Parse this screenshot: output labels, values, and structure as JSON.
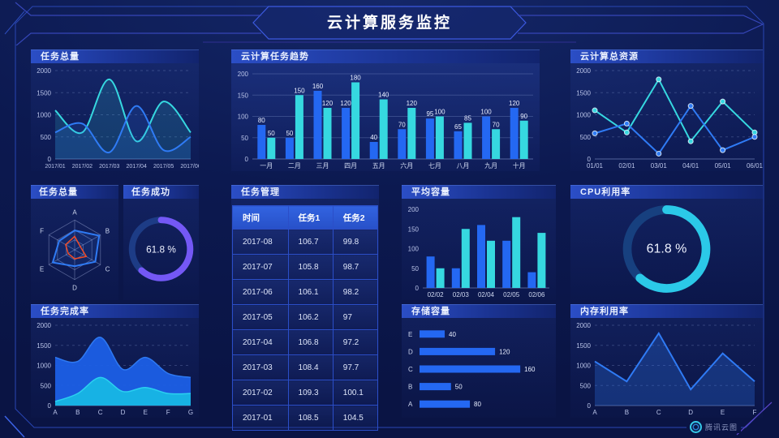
{
  "header": {
    "title": "云计算服务监控"
  },
  "watermark": {
    "label": "腾讯云图"
  },
  "colors": {
    "background": "#0c1950",
    "accent_blue": "#2468f2",
    "accent_cyan": "#36d8e0",
    "accent_purple": "#7458f5",
    "frame_line": "#2946b4",
    "title_bar": "#2b4ec6",
    "table_border": "#2b4ec8"
  },
  "chart_data": [
    {
      "id": "tasks_total_line",
      "type": "line",
      "title": "任务总量",
      "smooth": true,
      "markers": false,
      "grid": "dashed",
      "area_opacity": 0.16,
      "xfont": 7,
      "x": [
        "2017/01",
        "2017/02",
        "2017/03",
        "2017/04",
        "2017/05",
        "2017/06"
      ],
      "series": [
        {
          "name": "cyan-series",
          "color": "#36d8e0",
          "values": [
            1100,
            600,
            1800,
            400,
            1300,
            600
          ]
        },
        {
          "name": "blue-series",
          "color": "#2f7bf5",
          "values": [
            600,
            800,
            150,
            1200,
            200,
            500
          ]
        }
      ],
      "ylim": [
        0,
        2000
      ],
      "yticks": [
        0,
        500,
        1000,
        1500,
        2000
      ]
    },
    {
      "id": "task_trend_bar",
      "type": "bar",
      "title": "云计算任务趋势",
      "grid": "solid",
      "value_labels": true,
      "categories": [
        "一月",
        "二月",
        "三月",
        "四月",
        "五月",
        "六月",
        "七月",
        "八月",
        "九月",
        "十月"
      ],
      "series": [
        {
          "name": "任务1",
          "color": "#2468f2",
          "values": [
            80,
            50,
            160,
            120,
            40,
            70,
            95,
            65,
            100,
            120
          ]
        },
        {
          "name": "任务2",
          "color": "#36d8e0",
          "values": [
            50,
            150,
            120,
            180,
            140,
            120,
            100,
            85,
            70,
            90
          ]
        }
      ],
      "ylim": [
        0,
        200
      ],
      "yticks": [
        0,
        50,
        100,
        150,
        200
      ]
    },
    {
      "id": "resources_line",
      "type": "line",
      "title": "云计算总资源",
      "smooth": false,
      "markers": true,
      "grid": "dashed",
      "area_opacity": 0,
      "xfont": 8,
      "x": [
        "01/01",
        "02/01",
        "03/01",
        "04/01",
        "05/01",
        "06/01"
      ],
      "series": [
        {
          "name": "cyan-series",
          "color": "#36d8e0",
          "values": [
            1100,
            600,
            1800,
            400,
            1300,
            600
          ]
        },
        {
          "name": "blue-series",
          "color": "#2f7bf5",
          "values": [
            580,
            800,
            120,
            1200,
            200,
            500
          ]
        }
      ],
      "ylim": [
        0,
        2000
      ],
      "yticks": [
        0,
        500,
        1000,
        1500,
        2000
      ]
    },
    {
      "id": "tasks_radar",
      "type": "radar",
      "title": "任务总量",
      "axes": [
        "A",
        "B",
        "C",
        "D",
        "E",
        "F"
      ],
      "max": 100,
      "series": [
        {
          "name": "blue-series",
          "color": "#2f7bf5",
          "values": [
            65,
            95,
            80,
            55,
            85,
            60
          ]
        },
        {
          "name": "red-series",
          "color": "#ef4b28",
          "values": [
            45,
            22,
            45,
            30,
            25,
            35
          ]
        }
      ]
    },
    {
      "id": "task_success_gauge",
      "type": "donut",
      "title": "任务成功",
      "value": 61.8,
      "unit": "%",
      "color": "#7458f5",
      "track": "#1d3c86"
    },
    {
      "id": "task_table",
      "type": "table",
      "title": "任务管理",
      "columns": [
        "时间",
        "任务1",
        "任务2"
      ],
      "rows": [
        [
          "2017-08",
          "106.7",
          "99.8"
        ],
        [
          "2017-07",
          "105.8",
          "98.7"
        ],
        [
          "2017-06",
          "106.1",
          "98.2"
        ],
        [
          "2017-05",
          "106.2",
          "97"
        ],
        [
          "2017-04",
          "106.8",
          "97.2"
        ],
        [
          "2017-03",
          "108.4",
          "97.7"
        ],
        [
          "2017-02",
          "109.3",
          "100.1"
        ],
        [
          "2017-01",
          "108.5",
          "104.5"
        ]
      ]
    },
    {
      "id": "avg_capacity_bar",
      "type": "bar",
      "title": "平均容量",
      "grid": "none",
      "value_labels": false,
      "categories": [
        "02/02",
        "02/03",
        "02/04",
        "02/05",
        "02/06"
      ],
      "series": [
        {
          "name": "blue-series",
          "color": "#2468f2",
          "values": [
            80,
            50,
            160,
            120,
            40
          ]
        },
        {
          "name": "cyan-series",
          "color": "#36d8e0",
          "values": [
            50,
            150,
            120,
            180,
            140
          ]
        }
      ],
      "ylim": [
        0,
        200
      ],
      "yticks": [
        0,
        50,
        100,
        150,
        200
      ]
    },
    {
      "id": "cpu_gauge",
      "type": "donut",
      "title": "CPU利用率",
      "value": 61.8,
      "unit": "%",
      "color": "#2bc9e8",
      "track": "#17407f"
    },
    {
      "id": "completion_area",
      "type": "area",
      "title": "任务完成率",
      "grid": "dashed",
      "x": [
        "A",
        "B",
        "C",
        "D",
        "E",
        "F",
        "G"
      ],
      "series": [
        {
          "name": "blue-area",
          "color": "#1c5fe6",
          "stroke": "#2e79f2",
          "opacity": 0.95,
          "values": [
            1200,
            1100,
            1700,
            900,
            1200,
            800,
            700
          ]
        },
        {
          "name": "cyan-area",
          "color": "#17b2e4",
          "stroke": "#2bd0f0",
          "opacity": 1,
          "values": [
            100,
            300,
            700,
            350,
            450,
            300,
            300
          ]
        }
      ],
      "ylim": [
        0,
        2000
      ],
      "yticks": [
        0,
        500,
        1000,
        1500,
        2000
      ]
    },
    {
      "id": "storage_hbar",
      "type": "hbar",
      "title": "存储容量",
      "categories": [
        "E",
        "D",
        "C",
        "B",
        "A"
      ],
      "values": [
        40,
        120,
        160,
        50,
        80
      ],
      "color": "#2468f2",
      "xmax": 165
    },
    {
      "id": "memory_line",
      "type": "line",
      "title": "内存利用率",
      "smooth": false,
      "markers": false,
      "grid": "dashed",
      "area_opacity": 0.28,
      "xfont": 8,
      "x": [
        "A",
        "B",
        "C",
        "D",
        "E",
        "F"
      ],
      "series": [
        {
          "name": "blue-series",
          "color": "#2f7bf5",
          "values": [
            1100,
            600,
            1800,
            400,
            1300,
            600
          ]
        }
      ],
      "ylim": [
        0,
        2000
      ],
      "yticks": [
        0,
        500,
        1000,
        1500,
        2000
      ]
    }
  ]
}
